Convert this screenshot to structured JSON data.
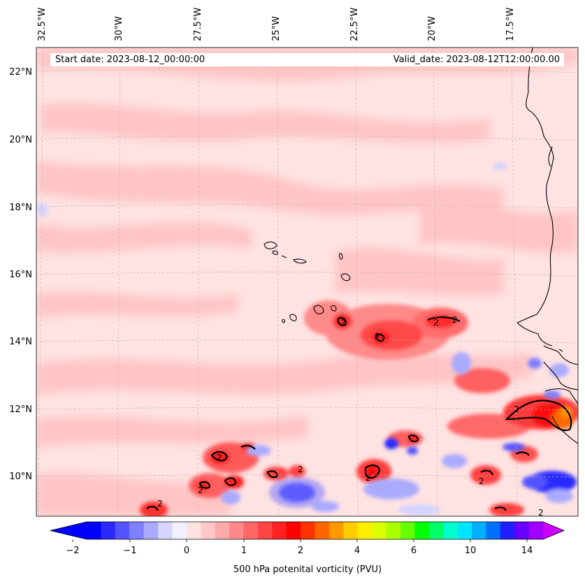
{
  "map": {
    "start_date": "Start date: 2023-08-12_00:00:00",
    "valid_date": "Valid_date: 2023-08-12T12:00:00.00",
    "lon_labels": [
      "32.5°W",
      "30°W",
      "27.5°W",
      "25°W",
      "22.5°W",
      "20°W",
      "17.5°W"
    ],
    "lat_labels": [
      "22°N",
      "20°N",
      "18°N",
      "16°N",
      "14°N",
      "12°N",
      "10°N"
    ],
    "contour_label": "2",
    "colors": {
      "coast": "#000000",
      "contour": "#000000",
      "grid": "#b0b0b0",
      "base": "#ffe2e2"
    }
  },
  "colorbar": {
    "label": "500 hPa potenital vorticity (PVU)",
    "ticks": [
      "−2",
      "−1",
      "0",
      "1",
      "2",
      "4",
      "6",
      "10",
      "14"
    ],
    "colors": [
      "#0000ff",
      "#2a2aff",
      "#5555ff",
      "#7f7fff",
      "#aaaaff",
      "#d4d4ff",
      "#f0f0ff",
      "#ffe2e2",
      "#ffc8c8",
      "#ffaaaa",
      "#ff8888",
      "#ff6666",
      "#ff4444",
      "#ff2222",
      "#ff0000",
      "#ff3300",
      "#ff6600",
      "#ff9900",
      "#ffcc00",
      "#ffee00",
      "#ddff00",
      "#aaff00",
      "#66ff00",
      "#00ff00",
      "#00ff66",
      "#00ffcc",
      "#00e5ff",
      "#00b0ff",
      "#0070ff",
      "#1f1fff",
      "#6600ff",
      "#a000ff"
    ],
    "under_color": "#0000ff",
    "over_color": "#cc00ff"
  }
}
